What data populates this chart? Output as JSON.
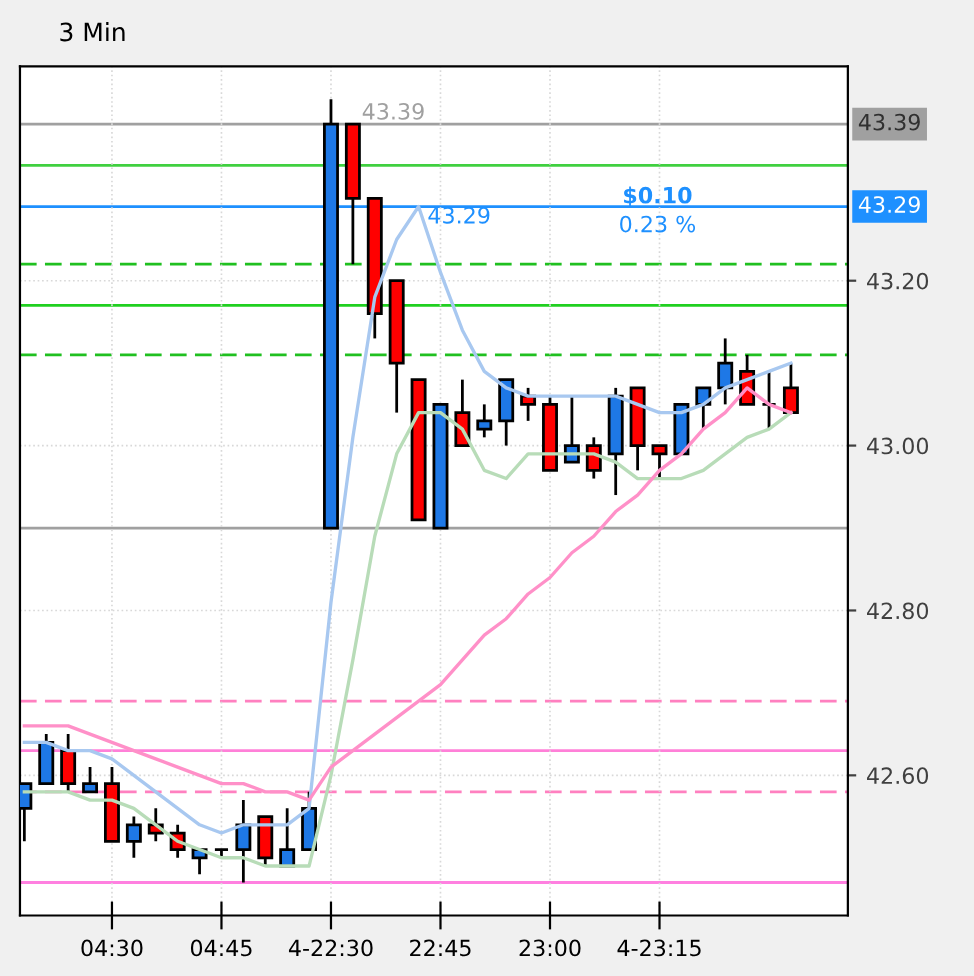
{
  "chart_data": {
    "type": "candlestick",
    "title": "3 Min",
    "categories": [
      null,
      null,
      null,
      null,
      "04:30",
      null,
      null,
      null,
      null,
      "04:45",
      null,
      null,
      null,
      null,
      "4-22:30",
      null,
      null,
      null,
      null,
      "22:45",
      null,
      null,
      null,
      null,
      "23:00",
      null,
      null,
      null,
      null,
      "4-23:15",
      null,
      null,
      null,
      null,
      null,
      null
    ],
    "series": [
      {
        "ohlc": [
          [
            42.56,
            42.59,
            42.52,
            42.59
          ],
          [
            42.59,
            42.65,
            42.59,
            42.64
          ],
          [
            42.63,
            42.65,
            42.58,
            42.59
          ],
          [
            42.58,
            42.61,
            42.58,
            42.59
          ],
          [
            42.59,
            42.61,
            42.52,
            42.52
          ],
          [
            42.52,
            42.55,
            42.5,
            42.54
          ],
          [
            42.54,
            42.56,
            42.52,
            42.53
          ],
          [
            42.53,
            42.54,
            42.5,
            42.51
          ],
          [
            42.5,
            42.51,
            42.48,
            42.51
          ],
          [
            42.51,
            42.51,
            42.5,
            42.51
          ],
          [
            42.51,
            42.57,
            42.47,
            42.54
          ],
          [
            42.55,
            42.55,
            42.49,
            42.5
          ],
          [
            42.49,
            42.56,
            42.49,
            42.51
          ],
          [
            42.51,
            42.58,
            42.51,
            42.56
          ],
          [
            42.9,
            43.42,
            42.9,
            43.39
          ],
          [
            43.39,
            43.39,
            43.22,
            43.3
          ],
          [
            43.3,
            43.3,
            43.13,
            43.16
          ],
          [
            43.2,
            43.2,
            43.04,
            43.1
          ],
          [
            43.08,
            43.08,
            42.91,
            42.91
          ],
          [
            42.9,
            43.05,
            42.9,
            43.05
          ],
          [
            43.04,
            43.08,
            43.0,
            43.0
          ],
          [
            43.02,
            43.05,
            43.01,
            43.03
          ],
          [
            43.03,
            43.08,
            43.0,
            43.08
          ],
          [
            43.06,
            43.07,
            43.03,
            43.05
          ],
          [
            43.05,
            43.06,
            42.97,
            42.97
          ],
          [
            42.98,
            43.06,
            42.98,
            43.0
          ],
          [
            43.0,
            43.01,
            42.96,
            42.97
          ],
          [
            42.99,
            43.07,
            42.94,
            43.06
          ],
          [
            43.07,
            43.07,
            42.97,
            43.0
          ],
          [
            43.0,
            43.0,
            42.96,
            42.99
          ],
          [
            42.99,
            43.05,
            42.99,
            43.05
          ],
          [
            43.05,
            43.07,
            43.02,
            43.07
          ],
          [
            43.07,
            43.13,
            43.05,
            43.1
          ],
          [
            43.09,
            43.11,
            43.05,
            43.05
          ],
          [
            43.05,
            43.09,
            43.02,
            43.05
          ],
          [
            43.07,
            43.1,
            43.04,
            43.04
          ]
        ],
        "colors": [
          "#1e78e6",
          "#1e78e6",
          "#ff0000",
          "#1e78e6",
          "#ff0000",
          "#1e78e6",
          "#ff0000",
          "#ff0000",
          "#1e78e6",
          "#000000",
          "#1e78e6",
          "#ff0000",
          "#1e78e6",
          "#1e78e6",
          "#1e78e6",
          "#ff0000",
          "#ff0000",
          "#ff0000",
          "#ff0000",
          "#1e78e6",
          "#ff0000",
          "#1e78e6",
          "#1e78e6",
          "#ff0000",
          "#ff0000",
          "#1e78e6",
          "#ff0000",
          "#1e78e6",
          "#ff0000",
          "#ff0000",
          "#1e78e6",
          "#1e78e6",
          "#1e78e6",
          "#ff0000",
          "#000000",
          "#ff0000"
        ]
      },
      {
        "type": "line",
        "color": "#a8c8f0",
        "values": [
          42.64,
          42.64,
          42.63,
          42.63,
          42.62,
          42.6,
          42.58,
          42.56,
          42.54,
          42.53,
          42.54,
          42.54,
          42.54,
          42.56,
          42.81,
          43.01,
          43.18,
          43.25,
          43.29,
          43.21,
          43.14,
          43.09,
          43.07,
          43.06,
          43.06,
          43.06,
          43.06,
          43.06,
          43.05,
          43.04,
          43.04,
          43.05,
          43.07,
          43.08,
          43.09,
          43.1
        ]
      },
      {
        "type": "line",
        "color": "#b8dcb8",
        "values": [
          42.58,
          42.58,
          42.58,
          42.57,
          42.57,
          42.56,
          42.54,
          42.52,
          42.51,
          42.5,
          42.5,
          42.49,
          42.49,
          42.49,
          42.6,
          42.74,
          42.89,
          42.99,
          43.04,
          43.04,
          43.02,
          42.97,
          42.96,
          42.99,
          42.99,
          42.99,
          42.99,
          42.98,
          42.96,
          42.96,
          42.96,
          42.97,
          42.99,
          43.01,
          43.02,
          43.04
        ]
      },
      {
        "type": "line",
        "color": "#ff90c8",
        "values": [
          42.66,
          42.66,
          42.66,
          42.65,
          42.64,
          42.63,
          42.62,
          42.61,
          42.6,
          42.59,
          42.59,
          42.58,
          42.58,
          42.57,
          42.61,
          42.63,
          42.65,
          42.67,
          42.69,
          42.71,
          42.74,
          42.77,
          42.79,
          42.82,
          42.84,
          42.87,
          42.89,
          42.92,
          42.94,
          42.97,
          42.99,
          43.02,
          43.04,
          43.07,
          43.05,
          43.04
        ]
      }
    ],
    "ylim": [
      42.43,
      43.46
    ],
    "yticks": [
      {
        "value": 42.6,
        "label": "42.60"
      },
      {
        "value": 42.8,
        "label": "42.80"
      },
      {
        "value": 43.0,
        "label": "43.00"
      },
      {
        "value": 43.2,
        "label": "43.20"
      }
    ],
    "ref_lines": [
      {
        "axis": "y",
        "value": 43.39,
        "label": "43.39",
        "color": "#a0a0a0",
        "line_style": "solid"
      },
      {
        "axis": "y",
        "value": 43.34,
        "color": "#40d040",
        "line_style": "solid"
      },
      {
        "axis": "y",
        "value": 43.29,
        "label": "43.29",
        "color": "#1e90ff",
        "line_style": "solid"
      },
      {
        "axis": "y",
        "value": 43.22,
        "color": "#20c020",
        "line_style": "dashed"
      },
      {
        "axis": "y",
        "value": 43.17,
        "color": "#20d020",
        "line_style": "solid"
      },
      {
        "axis": "y",
        "value": 43.11,
        "color": "#20c020",
        "line_style": "dashed"
      },
      {
        "axis": "y",
        "value": 42.9,
        "color": "#a0a0a0",
        "line_style": "solid"
      },
      {
        "axis": "y",
        "value": 42.69,
        "color": "#ff80c0",
        "line_style": "dashed"
      },
      {
        "axis": "y",
        "value": 42.63,
        "color": "#ff80d8",
        "line_style": "solid"
      },
      {
        "axis": "y",
        "value": 42.58,
        "color": "#ff80c0",
        "line_style": "dashed"
      },
      {
        "axis": "y",
        "value": 42.47,
        "color": "#ff80e0",
        "line_style": "solid"
      }
    ],
    "annotations": [
      {
        "text": "43.39",
        "y": 43.39
      },
      {
        "text": "43.29",
        "y": 43.29
      },
      "$0.10",
      "0.23 %"
    ],
    "grid": true,
    "legend": false
  }
}
